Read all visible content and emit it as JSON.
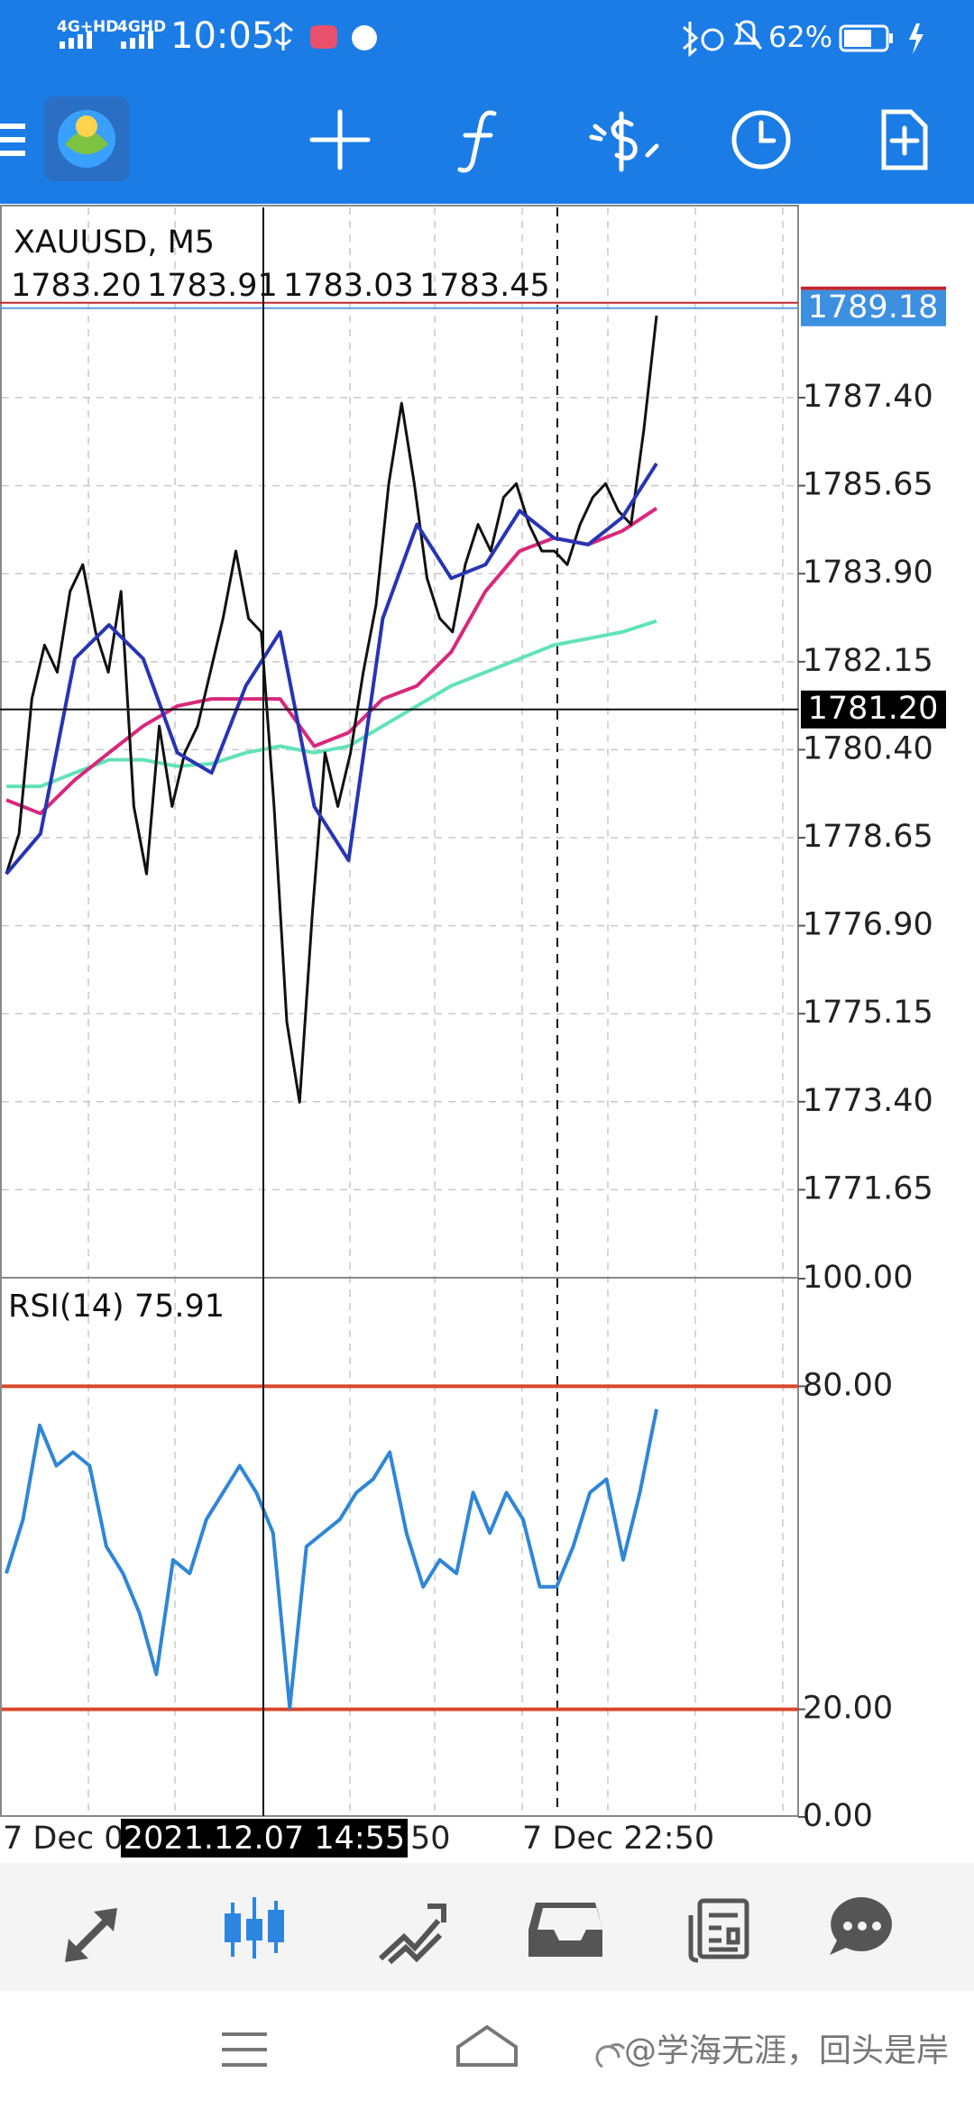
{
  "status_bar": {
    "network_1": "4G+HD",
    "network_2": "4GHD",
    "time": "10:05",
    "battery": "62%"
  },
  "chart": {
    "symbol": "XAUUSD, M5",
    "ohlc": [
      "1783.20",
      "1783.91",
      "1783.03",
      "1783.45"
    ],
    "ylim": [
      1769.9,
      1791.22
    ],
    "yticks": [
      {
        "value": 1787.4,
        "label": "1787.40"
      },
      {
        "value": 1785.65,
        "label": "1785.65"
      },
      {
        "value": 1783.9,
        "label": "1783.90"
      },
      {
        "value": 1782.15,
        "label": "1782.15"
      },
      {
        "value": 1780.4,
        "label": "1780.40"
      },
      {
        "value": 1778.65,
        "label": "1778.65"
      },
      {
        "value": 1776.9,
        "label": "1776.90"
      },
      {
        "value": 1775.15,
        "label": "1775.15"
      },
      {
        "value": 1773.4,
        "label": "1773.40"
      },
      {
        "value": 1771.65,
        "label": "1771.65"
      }
    ],
    "grid": true,
    "bid": {
      "value": 1789.18,
      "label": "1789.18"
    },
    "crosshair_price": {
      "value": 1781.2,
      "label": "1781.20"
    },
    "crosshair_time": "2021.12.07 14:55",
    "time_labels": [
      "7 Dec 0",
      "50",
      "7 Dec 22:50"
    ],
    "price": {
      "color": "#111111",
      "values": [
        1777.93,
        1778.73,
        1781.41,
        1782.48,
        1781.94,
        1783.55,
        1784.08,
        1782.74,
        1781.94,
        1783.55,
        1779.27,
        1777.93,
        1780.87,
        1779.27,
        1780.34,
        1780.87,
        1781.94,
        1783.01,
        1784.35,
        1783.01,
        1782.74,
        1779.27,
        1774.99,
        1773.39,
        1777.13,
        1780.34,
        1779.27,
        1780.34,
        1781.94,
        1783.28,
        1785.69,
        1787.29,
        1785.69,
        1783.81,
        1783.01,
        1782.74,
        1784.08,
        1784.88,
        1784.35,
        1785.42,
        1785.69,
        1784.88,
        1784.35,
        1784.35,
        1784.08,
        1784.88,
        1785.42,
        1785.69,
        1785.15,
        1784.88,
        1786.76,
        1789.03
      ]
    },
    "ma_fast": {
      "color": "#2834b4",
      "values": [
        1777.93,
        1778.73,
        1782.21,
        1782.88,
        1782.21,
        1780.34,
        1779.94,
        1781.67,
        1782.74,
        1779.27,
        1778.2,
        1783.01,
        1784.88,
        1783.81,
        1784.08,
        1785.15,
        1784.61,
        1784.48,
        1785.02,
        1786.09
      ]
    },
    "ma_mid": {
      "color": "#d8287c",
      "values": [
        1779.4,
        1779.13,
        1779.8,
        1780.34,
        1780.87,
        1781.27,
        1781.41,
        1781.41,
        1781.41,
        1780.47,
        1780.74,
        1781.41,
        1781.67,
        1782.34,
        1783.55,
        1784.35,
        1784.61,
        1784.48,
        1784.75,
        1785.2
      ]
    },
    "ma_slow": {
      "color": "#62e2b8",
      "values": [
        1779.67,
        1779.67,
        1779.94,
        1780.2,
        1780.2,
        1780.07,
        1780.12,
        1780.34,
        1780.47,
        1780.34,
        1780.47,
        1780.87,
        1781.27,
        1781.67,
        1781.94,
        1782.21,
        1782.48,
        1782.61,
        1782.74,
        1782.96
      ]
    }
  },
  "rsi": {
    "label": "RSI(14) 75.91",
    "ylim": [
      0,
      100
    ],
    "yticks": [
      {
        "value": 100,
        "label": "100.00"
      },
      {
        "value": 80,
        "label": "80.00"
      },
      {
        "value": 20,
        "label": "20.00"
      },
      {
        "value": 0,
        "label": "0.00"
      }
    ],
    "levels": [
      80,
      20
    ],
    "level_color": "#d9472b",
    "color": "#2f86d6",
    "values": [
      45.25,
      55.25,
      72.75,
      65.25,
      67.75,
      65.25,
      50.25,
      45.25,
      37.75,
      26.5,
      47.75,
      45.25,
      55.25,
      60.25,
      65.25,
      60.25,
      52.75,
      20.25,
      50.25,
      52.75,
      55.25,
      60.25,
      62.75,
      67.75,
      52.75,
      42.75,
      47.75,
      45.25,
      60.25,
      52.75,
      60.25,
      55.25,
      42.75,
      42.75,
      50.25,
      60.25,
      62.75,
      47.75,
      60.25,
      75.75
    ]
  },
  "watermark": "@学海无涯，回头是岸"
}
